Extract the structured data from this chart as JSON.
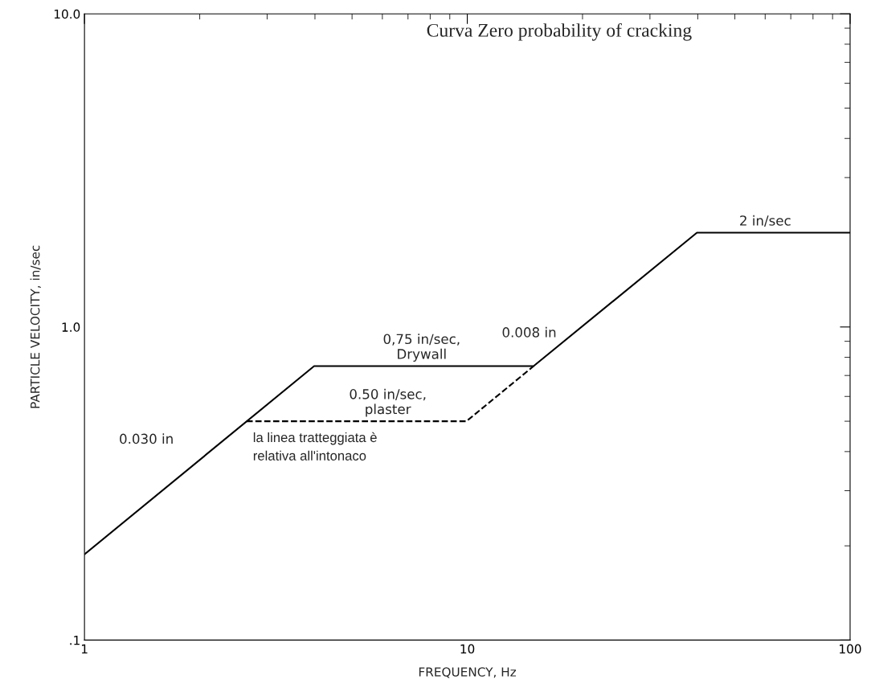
{
  "chart_data": {
    "type": "line",
    "title": "Curva Zero probability of cracking",
    "xlabel": "FREQUENCY, Hz",
    "ylabel": "PARTICLE VELOCITY, in/sec",
    "log": "xy",
    "xlim": [
      1,
      100
    ],
    "ylim": [
      0.1,
      10
    ],
    "xticks": [
      {
        "value": 1,
        "label": "1"
      },
      {
        "value": 10,
        "label": "10"
      },
      {
        "value": 100,
        "label": "100"
      }
    ],
    "yticks": [
      {
        "value": 0.1,
        "label": ".1"
      },
      {
        "value": 1,
        "label": "1.0"
      },
      {
        "value": 10,
        "label": "10.0"
      }
    ],
    "grid": false,
    "marker": "none",
    "series": [
      {
        "color": "#000000",
        "line_style": "solid",
        "x": [
          1,
          3.98,
          14.9,
          39.8,
          100
        ],
        "values": [
          0.188,
          0.75,
          0.75,
          2,
          2
        ]
      },
      {
        "color": "#000000",
        "line_style": "dashed",
        "x": [
          2.65,
          9.95,
          14.9
        ],
        "values": [
          0.5,
          0.5,
          0.75
        ]
      }
    ],
    "annotations": [
      {
        "text": "0,75 in/sec,\nDrywall",
        "x": 7.6,
        "y": 0.75
      },
      {
        "text": "0.50 in/sec,\nplaster",
        "x": 6.2,
        "y": 0.5
      },
      "0.030 in",
      "0.008 in",
      {
        "text": "2 in/sec",
        "x": 60,
        "y": 2
      },
      "la linea tratteggiata è\nrelativa all'intonaco"
    ]
  }
}
